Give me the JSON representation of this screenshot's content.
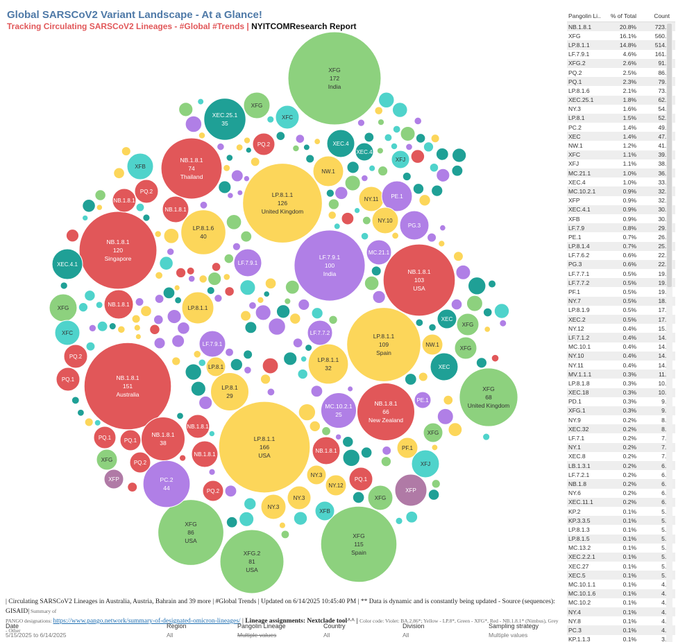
{
  "header": {
    "title": "Global SARSCoV2 Variant Landscape - At a Glance!",
    "subtitle_red": "Tracking Circulating SARSCoV2 Lineages - #Global #Trends | ",
    "subtitle_black": "NYITCOMResearch Report"
  },
  "colors": {
    "violet": "#b07fe6",
    "yellow": "#fcd65a",
    "green": "#8dd17e",
    "red": "#e15759",
    "teal": "#1fa096",
    "cyan": "#4fd3cb",
    "grey": "#b3b3b3",
    "mauve": "#b07aa6"
  },
  "chart_data": {
    "type": "bubble",
    "title": "Global SARSCoV2 Variant Landscape - At a Glance!",
    "size_measure": "count",
    "color_legend": "Color code: Violet: BA.2.86*; Yellow - LP.8*, Green - XFG*, Red - NB.1.8.1* (Nimbus), Grey - Other",
    "bubbles": [
      {
        "lineage": "XFG",
        "count": 172,
        "country": "India",
        "group": "green"
      },
      {
        "lineage": "LP.8.1.1",
        "count": 166,
        "country": "USA",
        "group": "yellow"
      },
      {
        "lineage": "NB.1.8.1",
        "count": 151,
        "country": "Australia",
        "group": "red"
      },
      {
        "lineage": "LP.8.1.1",
        "count": 126,
        "country": "United Kingdom",
        "group": "yellow"
      },
      {
        "lineage": "NB.1.8.1",
        "count": 120,
        "country": "Singapore",
        "group": "red"
      },
      {
        "lineage": "XFG",
        "count": 115,
        "country": "Spain",
        "group": "green"
      },
      {
        "lineage": "LP.8.1.1",
        "count": 109,
        "country": "Spain",
        "group": "yellow"
      },
      {
        "lineage": "NB.1.8.1",
        "count": 103,
        "country": "USA",
        "group": "red"
      },
      {
        "lineage": "LF.7.9.1",
        "count": 100,
        "country": "India",
        "group": "violet"
      },
      {
        "lineage": "XFG",
        "count": 86,
        "country": "USA",
        "group": "green"
      },
      {
        "lineage": "XFG.2",
        "count": 81,
        "country": "USA",
        "group": "green"
      },
      {
        "lineage": "NB.1.8.1",
        "count": 74,
        "country": "Thailand",
        "group": "red"
      },
      {
        "lineage": "XFG",
        "count": 68,
        "country": "United Kingdom",
        "group": "green"
      },
      {
        "lineage": "NB.1.8.1",
        "count": 66,
        "country": "New Zealand",
        "group": "red"
      },
      {
        "lineage": "PC.2",
        "count": 44,
        "country": "",
        "group": "violet"
      },
      {
        "lineage": "LP.8.1.6",
        "count": 40,
        "country": "",
        "group": "yellow"
      },
      {
        "lineage": "NB.1.8.1",
        "count": 38,
        "country": "",
        "group": "red"
      },
      {
        "lineage": "XEC.25.1",
        "count": 35,
        "country": "",
        "group": "teal"
      },
      {
        "lineage": "LP.8.1.1",
        "count": 32,
        "country": "",
        "group": "yellow"
      },
      {
        "lineage": "LP.8.1",
        "count": 29,
        "country": "",
        "group": "yellow"
      },
      {
        "lineage": "MC.10.2.1",
        "count": 25,
        "country": "",
        "group": "violet"
      }
    ],
    "small_bubble_labels": [
      "XFG",
      "XFC",
      "PQ.2",
      "XEC.4",
      "XEC.4",
      "XFJ",
      "XFB",
      "PQ.2",
      "NB.1.8.1",
      "NB.1.8.1",
      "NW.1",
      "NY.11",
      "PE.1",
      "NY.10",
      "PG.3",
      "LF.7.9.1",
      "MC.21.1",
      "XEC.4.1",
      "NB.1.8.1",
      "XFG",
      "XFC",
      "LP.8.1.1",
      "LF.7.7.2",
      "XEC",
      "XFG",
      "NW.1",
      "XFG",
      "LF.7.9.1",
      "PQ.2",
      "PQ.1",
      "LP.8.1",
      "XEC",
      "PE.1",
      "XFG",
      "NB.1.8.1",
      "PQ.1",
      "PQ.1",
      "NB.1.8.1",
      "PF.1",
      "NB.1.8.1",
      "XFG",
      "PQ.2",
      "XFJ",
      "XFP",
      "NY.3",
      "NY.12",
      "PQ.1",
      "XFP",
      "PQ.2",
      "NY.3",
      "NY.3",
      "XFG",
      "XFB"
    ]
  },
  "table": {
    "headers": [
      "Pangolin Li..",
      "% of Total",
      "Count"
    ],
    "rows": [
      [
        "NB.1.8.1",
        "20.8%",
        "723.0"
      ],
      [
        "XFG",
        "16.1%",
        "560.0"
      ],
      [
        "LP.8.1.1",
        "14.8%",
        "514.0"
      ],
      [
        "LF.7.9.1",
        "4.6%",
        "161.0"
      ],
      [
        "XFG.2",
        "2.6%",
        "91.0"
      ],
      [
        "PQ.2",
        "2.5%",
        "86.0"
      ],
      [
        "PQ.1",
        "2.3%",
        "79.0"
      ],
      [
        "LP.8.1.6",
        "2.1%",
        "73.0"
      ],
      [
        "XEC.25.1",
        "1.8%",
        "62.0"
      ],
      [
        "NY.3",
        "1.6%",
        "54.0"
      ],
      [
        "LP.8.1",
        "1.5%",
        "52.0"
      ],
      [
        "PC.2",
        "1.4%",
        "49.0"
      ],
      [
        "XEC",
        "1.4%",
        "47.0"
      ],
      [
        "NW.1",
        "1.2%",
        "41.0"
      ],
      [
        "XFC",
        "1.1%",
        "39.0"
      ],
      [
        "XFJ",
        "1.1%",
        "38.0"
      ],
      [
        "MC.21.1",
        "1.0%",
        "36.0"
      ],
      [
        "XEC.4",
        "1.0%",
        "33.0"
      ],
      [
        "MC.10.2.1",
        "0.9%",
        "32.0"
      ],
      [
        "XFP",
        "0.9%",
        "32.0"
      ],
      [
        "XEC.4.1",
        "0.9%",
        "30.0"
      ],
      [
        "XFB",
        "0.9%",
        "30.0"
      ],
      [
        "LF.7.9",
        "0.8%",
        "29.0"
      ],
      [
        "PE.1",
        "0.7%",
        "26.0"
      ],
      [
        "LP.8.1.4",
        "0.7%",
        "25.0"
      ],
      [
        "LF.7.6.2",
        "0.6%",
        "22.0"
      ],
      [
        "PG.3",
        "0.6%",
        "22.0"
      ],
      [
        "LF.7.7.1",
        "0.5%",
        "19.0"
      ],
      [
        "LF.7.7.2",
        "0.5%",
        "19.0"
      ],
      [
        "PF.1",
        "0.5%",
        "19.0"
      ],
      [
        "NY.7",
        "0.5%",
        "18.0"
      ],
      [
        "LP.8.1.9",
        "0.5%",
        "17.0"
      ],
      [
        "XEC.2",
        "0.5%",
        "17.0"
      ],
      [
        "NY.12",
        "0.4%",
        "15.0"
      ],
      [
        "LF.7.1.2",
        "0.4%",
        "14.0"
      ],
      [
        "MC.10.1",
        "0.4%",
        "14.0"
      ],
      [
        "NY.10",
        "0.4%",
        "14.0"
      ],
      [
        "NY.11",
        "0.4%",
        "14.0"
      ],
      [
        "MV.1.1.1",
        "0.3%",
        "11.0"
      ],
      [
        "LP.8.1.8",
        "0.3%",
        "10.0"
      ],
      [
        "XEC.18",
        "0.3%",
        "10.0"
      ],
      [
        "PD.1",
        "0.3%",
        "9.0"
      ],
      [
        "XFG.1",
        "0.3%",
        "9.0"
      ],
      [
        "NY.9",
        "0.2%",
        "8.0"
      ],
      [
        "XEC.32",
        "0.2%",
        "8.0"
      ],
      [
        "LF.7.1",
        "0.2%",
        "7.0"
      ],
      [
        "NY.1",
        "0.2%",
        "7.0"
      ],
      [
        "XEC.8",
        "0.2%",
        "7.0"
      ],
      [
        "LB.1.3.1",
        "0.2%",
        "6.0"
      ],
      [
        "LF.7.2.1",
        "0.2%",
        "6.0"
      ],
      [
        "NB.1.8",
        "0.2%",
        "6.0"
      ],
      [
        "NY.6",
        "0.2%",
        "6.0"
      ],
      [
        "XEC.11.1",
        "0.2%",
        "6.0"
      ],
      [
        "KP.2",
        "0.1%",
        "5.0"
      ],
      [
        "KP.3.3.5",
        "0.1%",
        "5.0"
      ],
      [
        "LP.8.1.3",
        "0.1%",
        "5.0"
      ],
      [
        "LP.8.1.5",
        "0.1%",
        "5.0"
      ],
      [
        "MC.13.2",
        "0.1%",
        "5.0"
      ],
      [
        "XEC.2.2.1",
        "0.1%",
        "5.0"
      ],
      [
        "XEC.27",
        "0.1%",
        "5.0"
      ],
      [
        "XEC.5",
        "0.1%",
        "5.0"
      ],
      [
        "MC.10.1.1",
        "0.1%",
        "4.0"
      ],
      [
        "MC.10.1.6",
        "0.1%",
        "4.0"
      ],
      [
        "MC.10.2",
        "0.1%",
        "4.0"
      ],
      [
        "NY.4",
        "0.1%",
        "4.0"
      ],
      [
        "NY.8",
        "0.1%",
        "4.0"
      ],
      [
        "PC.3",
        "0.1%",
        "4.0"
      ],
      [
        "KP.1.1.3",
        "0.1%",
        "3.0"
      ]
    ]
  },
  "footer": {
    "line1": "| Circulating SARSCoV2 Lineages in Australia, Austria, Bahrain and 39 more | #Global Trends | Updated on 6/14/2025 10:45:40 PM | ** Data is dynamic and is constantly being updated - Source (sequences): GISAID|",
    "line1_grey": " Summary of",
    "line2_grey": "PANGO designations: ",
    "link": "https://www.pango.network/summary-of-designated-omicron-lineages/",
    "sep": " | ",
    "bold": "Lineage assignments: Nextclade tool^^ |",
    "legend": "Color code: Violet: BA.2.86*; Yellow - LP.8*, Green - XFG*, Red - NB.1.8.1* (Nimbus), Grey - Other"
  },
  "filters": [
    {
      "label": "Date",
      "value": "5/15/2025 to 6/14/2025"
    },
    {
      "label": "Region",
      "value": "All"
    },
    {
      "label": "Pangolin Lineage",
      "value": "Multiple values"
    },
    {
      "label": "Country",
      "value": "All"
    },
    {
      "label": "Division",
      "value": "All"
    },
    {
      "label": "Sampling strategy",
      "value": "Multiple values"
    }
  ]
}
